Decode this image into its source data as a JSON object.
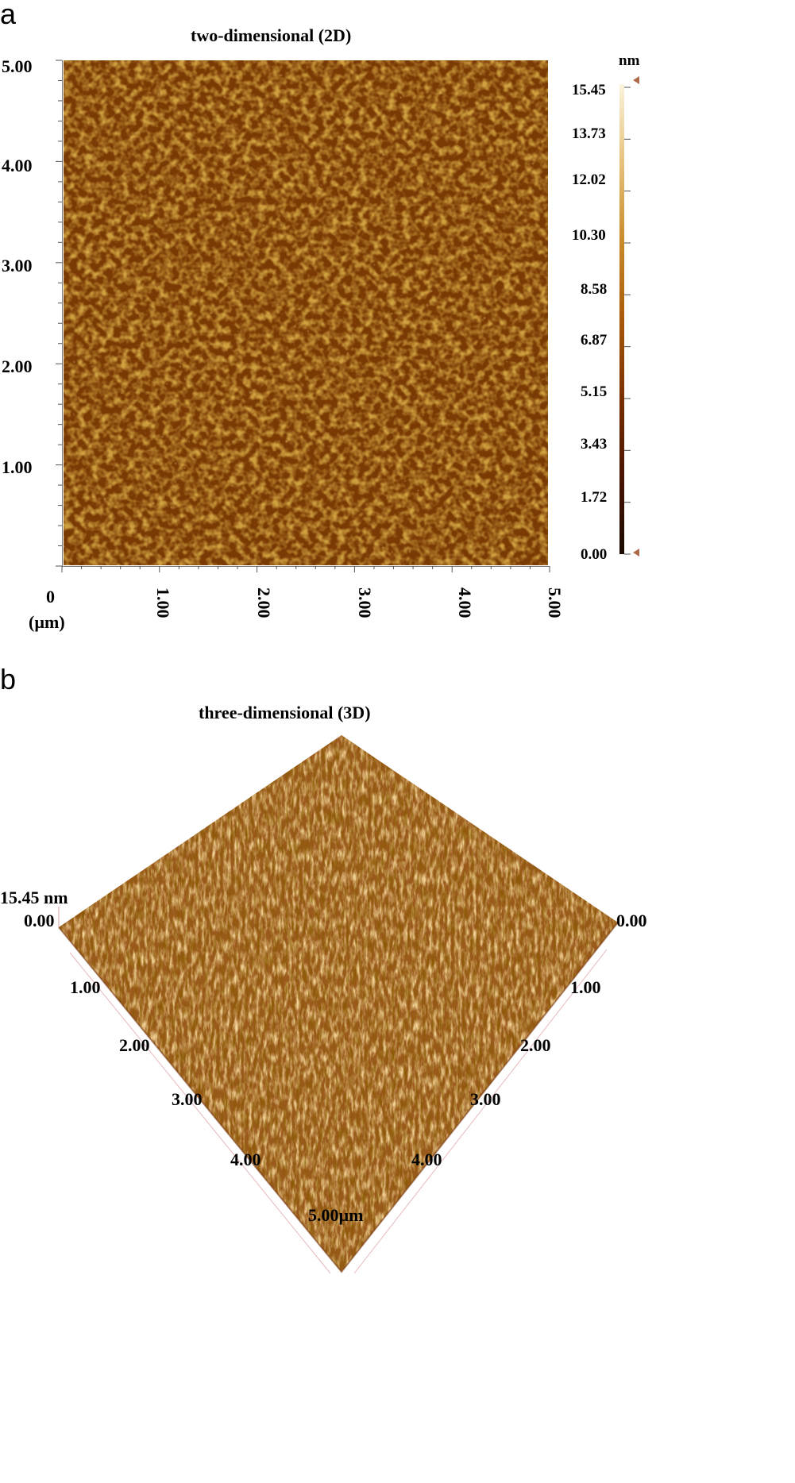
{
  "panel_a": {
    "letter": "a",
    "title": "two-dimensional (2D)",
    "y_ticks": [
      "5.00",
      "4.00",
      "3.00",
      "2.00",
      "1.00"
    ],
    "x_origin": "0",
    "x_unit": "(µm)",
    "x_ticks": [
      "1.00",
      "2.00",
      "3.00",
      "4.00",
      "5.00"
    ],
    "colorbar": {
      "unit": "nm",
      "ticks": [
        "15.45",
        "13.73",
        "12.02",
        "10.30",
        "8.58",
        "6.87",
        "5.15",
        "3.43",
        "1.72",
        "0.00"
      ],
      "colors": [
        "#1a0a00",
        "#4a1400",
        "#7a2f00",
        "#a85a0a",
        "#c98a2a",
        "#e6c27a",
        "#fbf3dc"
      ]
    },
    "image_colors": [
      "#5a2600",
      "#8a4a08",
      "#b8780f",
      "#e0b04a"
    ]
  },
  "panel_b": {
    "letter": "b",
    "title": "three-dimensional (3D)",
    "z_label": "15.45 nm",
    "left_ticks": [
      "0.00",
      "1.00",
      "2.00",
      "3.00",
      "4.00"
    ],
    "right_ticks": [
      "0.00",
      "1.00",
      "2.00",
      "3.00",
      "4.00"
    ],
    "bottom_label": "5.00µm",
    "surface_colors": [
      "#6e3a0a",
      "#9a5a18",
      "#c08030",
      "#e2a850"
    ]
  }
}
